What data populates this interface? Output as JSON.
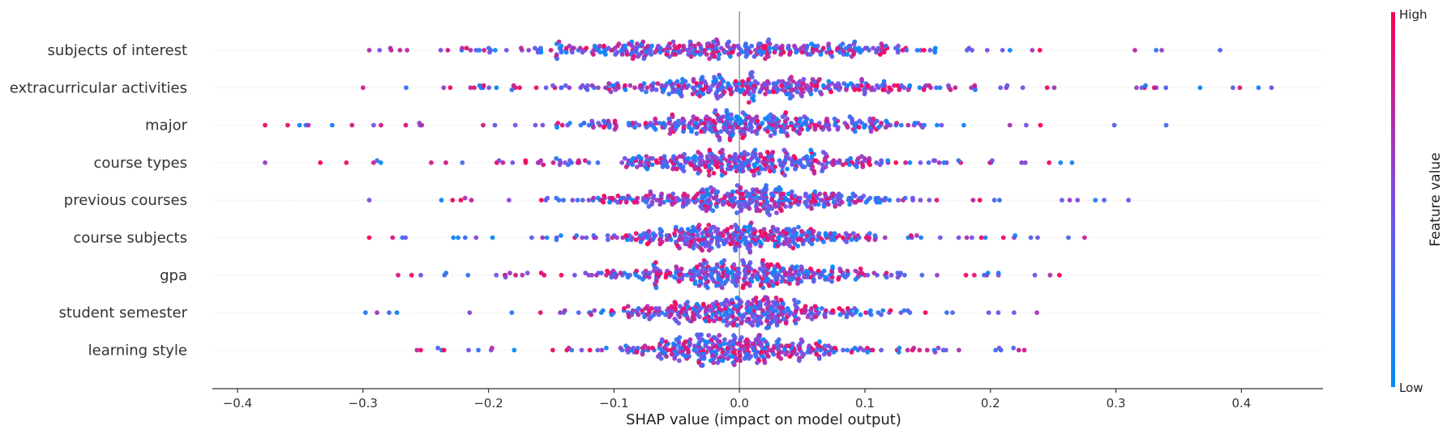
{
  "chart_data": {
    "type": "scatter",
    "subtype": "beeswarm",
    "xlabel": "SHAP value (impact on model output)",
    "xlim": [
      -0.42,
      0.465
    ],
    "x_ticks": [
      -0.4,
      -0.3,
      -0.2,
      -0.1,
      0.0,
      0.1,
      0.2,
      0.3,
      0.4
    ],
    "x_tick_labels": [
      "−0.4",
      "−0.3",
      "−0.2",
      "−0.1",
      "0.0",
      "0.1",
      "0.2",
      "0.3",
      "0.4"
    ],
    "zero_line": 0.0,
    "row_gridlines": true,
    "colorbar": {
      "title": "Feature value",
      "high_label": "High",
      "low_label": "Low",
      "high_color": "#ff0052",
      "mid_color": "#7a4ee6",
      "low_color": "#008bfb"
    },
    "features": [
      {
        "name": "subjects of interest",
        "min": -0.295,
        "max": 0.383,
        "spread": 0.085,
        "shift": -0.03
      },
      {
        "name": "extracurricular activities",
        "min": -0.3,
        "max": 0.424,
        "spread": 0.08,
        "shift": -0.005
      },
      {
        "name": "major",
        "min": -0.378,
        "max": 0.34,
        "spread": 0.065,
        "shift": 0.0
      },
      {
        "name": "course types",
        "min": -0.378,
        "max": 0.265,
        "spread": 0.06,
        "shift": 0.0
      },
      {
        "name": "previous courses",
        "min": -0.295,
        "max": 0.31,
        "spread": 0.055,
        "shift": 0.0
      },
      {
        "name": "course subjects",
        "min": -0.295,
        "max": 0.275,
        "spread": 0.055,
        "shift": 0.0
      },
      {
        "name": "gpa",
        "min": -0.272,
        "max": 0.255,
        "spread": 0.055,
        "shift": 0.0
      },
      {
        "name": "student semester",
        "min": -0.298,
        "max": 0.237,
        "spread": 0.05,
        "shift": 0.0
      },
      {
        "name": "learning style",
        "min": -0.257,
        "max": 0.227,
        "spread": 0.045,
        "shift": 0.0
      }
    ]
  }
}
